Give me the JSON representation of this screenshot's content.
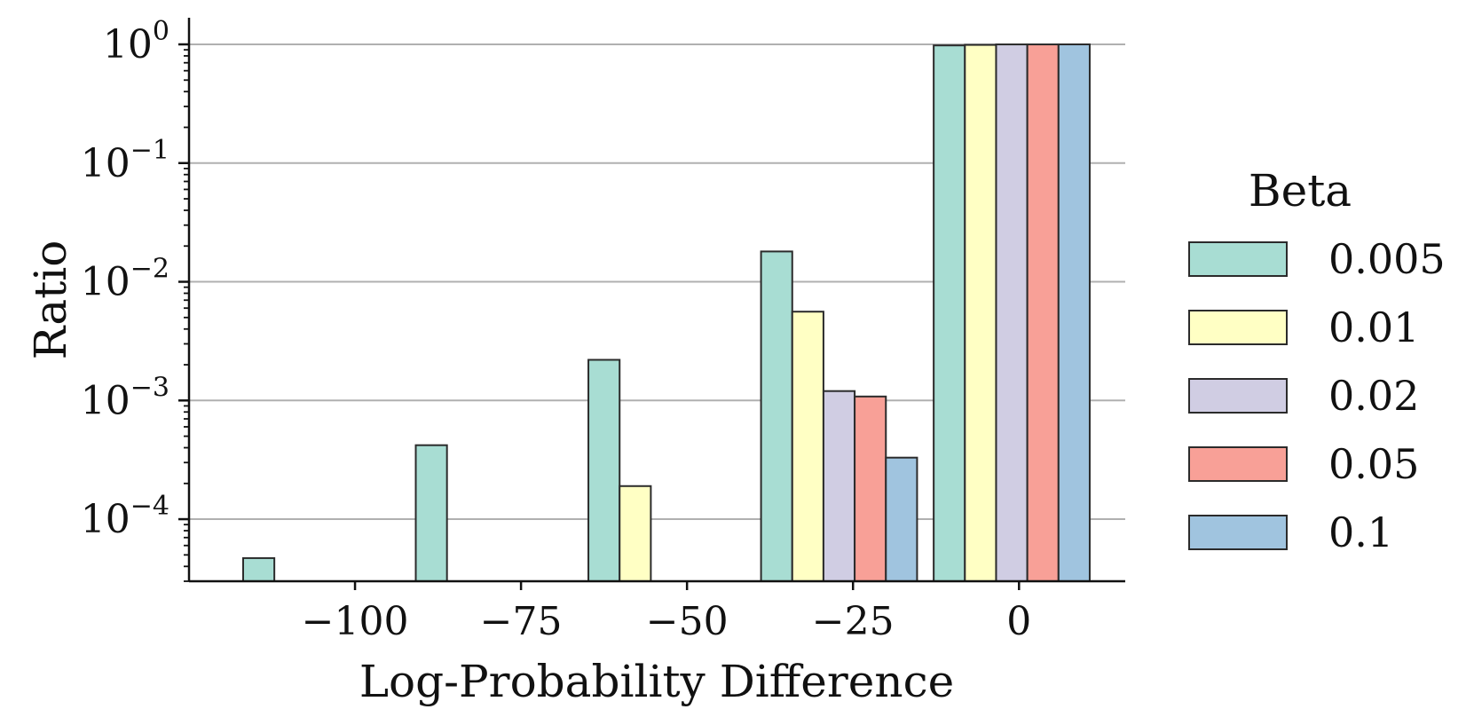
{
  "chart_data": {
    "type": "bar",
    "xlabel": "Log-Probability Difference",
    "ylabel": "Ratio",
    "yscale": "log",
    "ylim": [
      3e-05,
      1.0
    ],
    "xlim": [
      -125,
      16
    ],
    "x_ticks": [
      {
        "value": -100,
        "label": "−100"
      },
      {
        "value": -75,
        "label": "−75"
      },
      {
        "value": -50,
        "label": "−50"
      },
      {
        "value": -25,
        "label": "−25"
      },
      {
        "value": 0,
        "label": "0"
      }
    ],
    "y_ticks": [
      {
        "value": 1,
        "base": "10",
        "exp": "0"
      },
      {
        "value": 0.1,
        "base": "10",
        "exp": "−1"
      },
      {
        "value": 0.01,
        "base": "10",
        "exp": "−2"
      },
      {
        "value": 0.001,
        "base": "10",
        "exp": "−3"
      },
      {
        "value": 0.0001,
        "base": "10",
        "exp": "−4"
      }
    ],
    "grid": "horizontal",
    "legend": {
      "title": "Beta",
      "placement": "right"
    },
    "bar_width": 4.7,
    "series": [
      {
        "name": "0.005",
        "color": "#a8ddd3",
        "bars": [
          {
            "x": -114.5,
            "value": 4.7e-05
          },
          {
            "x": -88.5,
            "value": 0.00042
          },
          {
            "x": -62.5,
            "value": 0.0022
          },
          {
            "x": -36.5,
            "value": 0.018
          },
          {
            "x": -10.5,
            "value": 0.98
          }
        ]
      },
      {
        "name": "0.01",
        "color": "#ffffc4",
        "bars": [
          {
            "x": -57.8,
            "value": 0.00019
          },
          {
            "x": -31.8,
            "value": 0.0056
          },
          {
            "x": -5.8,
            "value": 0.99
          }
        ]
      },
      {
        "name": "0.02",
        "color": "#d0cde3",
        "bars": [
          {
            "x": -27.1,
            "value": 0.0012
          },
          {
            "x": -1.1,
            "value": 0.999
          }
        ]
      },
      {
        "name": "0.05",
        "color": "#f8a097",
        "bars": [
          {
            "x": -22.4,
            "value": 0.00108
          },
          {
            "x": 3.6,
            "value": 0.999
          }
        ]
      },
      {
        "name": "0.1",
        "color": "#a0c4df",
        "bars": [
          {
            "x": -17.7,
            "value": 0.00033
          },
          {
            "x": 8.3,
            "value": 0.9997
          }
        ]
      }
    ]
  }
}
